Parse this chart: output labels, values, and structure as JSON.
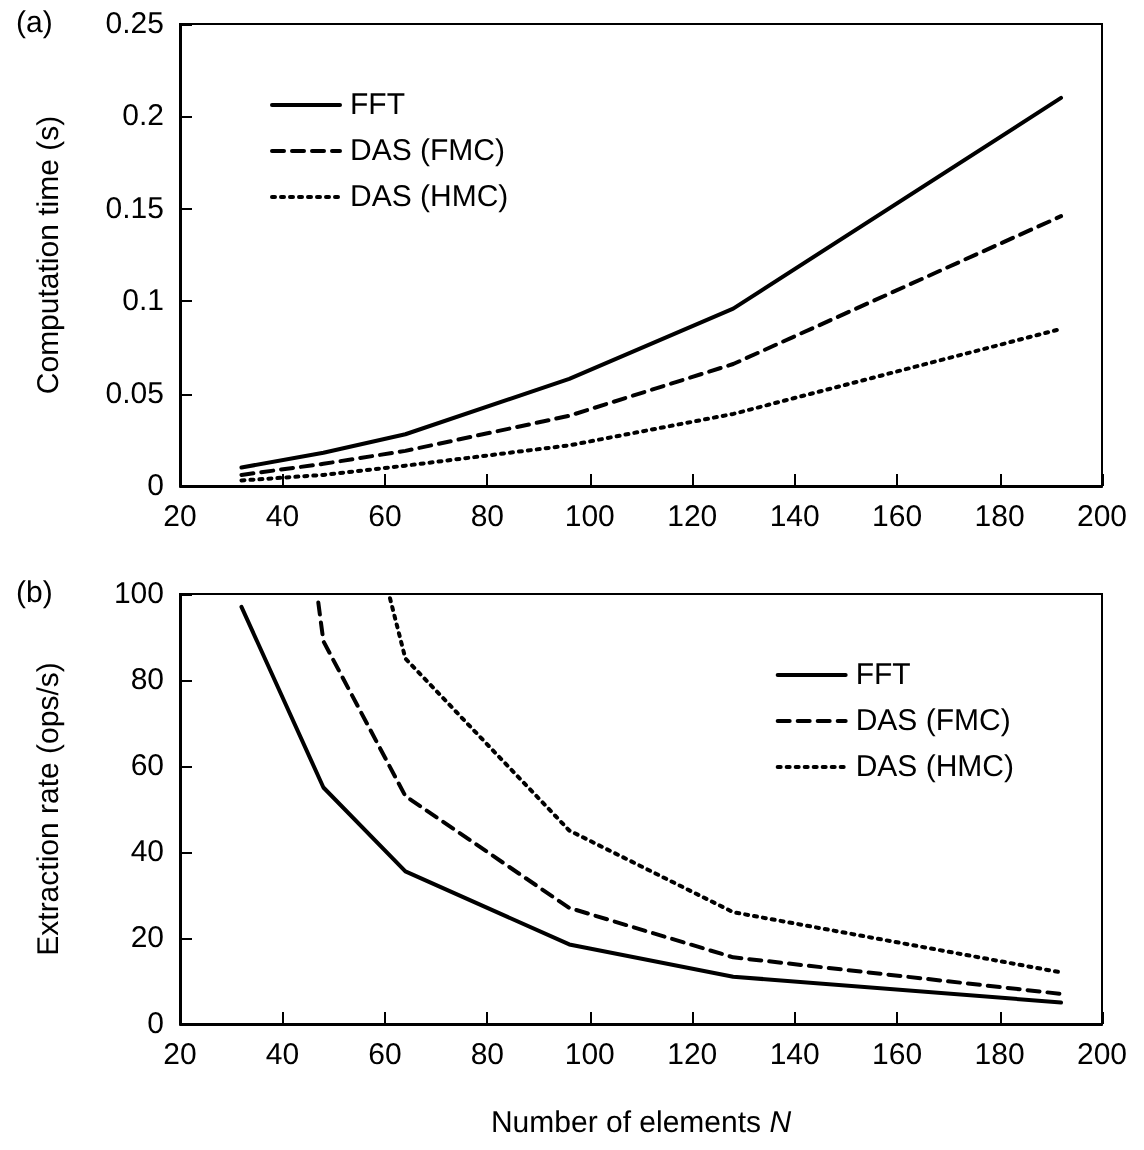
{
  "chart_data": [
    {
      "type": "line",
      "ylabel": "Computation time (s)",
      "annotations": [
        "(a)"
      ],
      "x": [
        32,
        48,
        64,
        96,
        128,
        192
      ],
      "xlim": [
        20,
        200
      ],
      "xticks": [
        20,
        40,
        60,
        80,
        100,
        120,
        140,
        160,
        180,
        200
      ],
      "ylim": [
        0,
        0.25
      ],
      "yticks": [
        0,
        0.05,
        0.1,
        0.15,
        0.2,
        0.25
      ],
      "grid": false,
      "legend": "top left",
      "marker": "none",
      "series": [
        {
          "name": "FFT",
          "color": "#000000",
          "line_style": "solid",
          "values": [
            0.01,
            0.018,
            0.028,
            0.058,
            0.096,
            0.21
          ]
        },
        {
          "name": "DAS (FMC)",
          "color": "#000000",
          "line_style": "dashed",
          "values": [
            0.006,
            0.012,
            0.019,
            0.038,
            0.066,
            0.146
          ]
        },
        {
          "name": "DAS (HMC)",
          "color": "#000000",
          "line_style": "dotted",
          "values": [
            0.003,
            0.006,
            0.011,
            0.022,
            0.039,
            0.085
          ]
        }
      ]
    },
    {
      "type": "line",
      "xlabel": "Number of elements N",
      "ylabel": "Extraction rate (ops/s)",
      "annotations": [
        "(b)"
      ],
      "xlim": [
        20,
        200
      ],
      "xticks": [
        20,
        40,
        60,
        80,
        100,
        120,
        140,
        160,
        180,
        200
      ],
      "ylim": [
        0,
        100
      ],
      "yticks": [
        0,
        20,
        40,
        60,
        80,
        100
      ],
      "grid": false,
      "legend": "top right",
      "marker": "none",
      "series": [
        {
          "name": "FFT",
          "color": "#000000",
          "line_style": "solid",
          "x": [
            32,
            48,
            64,
            96,
            128,
            192
          ],
          "values": [
            97,
            55,
            35.5,
            18.5,
            11,
            5
          ]
        },
        {
          "name": "DAS (FMC)",
          "color": "#000000",
          "line_style": "dashed",
          "x": [
            47,
            48,
            64,
            96,
            128,
            192
          ],
          "values": [
            98,
            89,
            53,
            27,
            15.5,
            7
          ]
        },
        {
          "name": "DAS (HMC)",
          "color": "#000000",
          "line_style": "dotted",
          "x": [
            61,
            64,
            96,
            128,
            192
          ],
          "values": [
            99,
            85,
            45,
            26,
            12
          ]
        }
      ]
    }
  ]
}
